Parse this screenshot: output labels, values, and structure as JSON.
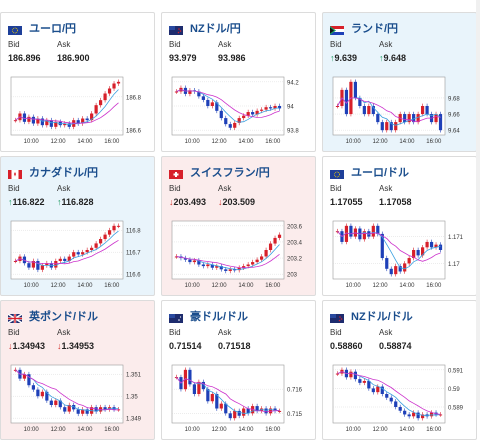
{
  "cards": [
    {
      "id": "eurjpy",
      "title": "ユーロ/円",
      "bid_label": "Bid",
      "ask_label": "Ask",
      "bid": "186.896",
      "ask": "186.900",
      "dir": "neutral",
      "arrow": "",
      "flag": "eu",
      "ticks": [
        "186.8",
        "186.6"
      ],
      "xticks": [
        "10:00",
        "12:00",
        "14:00",
        "16:00"
      ],
      "series": [
        186.66,
        186.7,
        186.65,
        186.68,
        186.64,
        186.67,
        186.63,
        186.66,
        186.62,
        186.65,
        186.63,
        186.64,
        186.62,
        186.66,
        186.64,
        186.67,
        186.66,
        186.7,
        186.75,
        186.78,
        186.82,
        186.85,
        186.88,
        186.89
      ]
    },
    {
      "id": "nzdjpy",
      "title": "NZドル/円",
      "bid_label": "Bid",
      "ask_label": "Ask",
      "bid": "93.979",
      "ask": "93.986",
      "dir": "neutral",
      "arrow": "",
      "flag": "nz",
      "ticks": [
        "94.2",
        "94",
        "93.8"
      ],
      "xticks": [
        "10:00",
        "12:00",
        "14:00",
        "16:00"
      ],
      "series": [
        94.12,
        94.15,
        94.1,
        94.13,
        94.12,
        94.08,
        94.05,
        94.0,
        94.03,
        93.96,
        93.9,
        93.85,
        93.82,
        93.86,
        93.9,
        93.92,
        93.95,
        93.93,
        93.96,
        93.97,
        93.99,
        93.98,
        94.0,
        93.98
      ]
    },
    {
      "id": "zarjpy",
      "title": "ランド/円",
      "bid_label": "Bid",
      "ask_label": "Ask",
      "bid": "9.639",
      "ask": "9.648",
      "dir": "up",
      "arrow": "up",
      "flag": "za",
      "ticks": [
        "9.68",
        "9.66",
        "9.64"
      ],
      "xticks": [
        "10:00",
        "12:00",
        "14:00",
        "16:00"
      ],
      "series": [
        9.67,
        9.69,
        9.66,
        9.7,
        9.68,
        9.67,
        9.66,
        9.67,
        9.66,
        9.65,
        9.64,
        9.65,
        9.64,
        9.65,
        9.66,
        9.65,
        9.66,
        9.65,
        9.66,
        9.67,
        9.66,
        9.65,
        9.66,
        9.64
      ]
    },
    {
      "id": "cadjpy",
      "title": "カナダドル/円",
      "bid_label": "Bid",
      "ask_label": "Ask",
      "bid": "116.822",
      "ask": "116.828",
      "dir": "up",
      "arrow": "up",
      "flag": "ca",
      "ticks": [
        "116.8",
        "116.7",
        "116.6"
      ],
      "xticks": [
        "10:00",
        "12:00",
        "14:00",
        "16:00"
      ],
      "series": [
        116.66,
        116.68,
        116.65,
        116.63,
        116.66,
        116.62,
        116.64,
        116.65,
        116.63,
        116.66,
        116.67,
        116.66,
        116.68,
        116.7,
        116.69,
        116.7,
        116.71,
        116.72,
        116.74,
        116.76,
        116.78,
        116.8,
        116.82,
        116.82
      ]
    },
    {
      "id": "chfjpy",
      "title": "スイスフラン/円",
      "bid_label": "Bid",
      "ask_label": "Ask",
      "bid": "203.493",
      "ask": "203.509",
      "dir": "down",
      "arrow": "down",
      "flag": "ch",
      "ticks": [
        "203.6",
        "203.4",
        "203.2",
        "203"
      ],
      "xticks": [
        "10:00",
        "12:00",
        "14:00",
        "16:00"
      ],
      "series": [
        203.22,
        203.2,
        203.18,
        203.15,
        203.17,
        203.12,
        203.1,
        203.12,
        203.08,
        203.1,
        203.06,
        203.04,
        203.06,
        203.05,
        203.08,
        203.1,
        203.12,
        203.15,
        203.18,
        203.22,
        203.3,
        203.38,
        203.45,
        203.49
      ]
    },
    {
      "id": "eurusd",
      "title": "ユーロ/ドル",
      "bid_label": "Bid",
      "ask_label": "Ask",
      "bid": "1.17055",
      "ask": "1.17058",
      "dir": "neutral",
      "arrow": "",
      "flag": "eu",
      "ticks": [
        "1.171",
        "1.17"
      ],
      "xticks": [
        "10:00",
        "12:00",
        "14:00",
        "16:00"
      ],
      "series": [
        1.1712,
        1.1708,
        1.1714,
        1.171,
        1.1713,
        1.1709,
        1.1712,
        1.171,
        1.1714,
        1.1711,
        1.1702,
        1.1698,
        1.1696,
        1.1699,
        1.1697,
        1.17,
        1.1702,
        1.1705,
        1.1703,
        1.1706,
        1.1708,
        1.1706,
        1.1707,
        1.1705
      ]
    },
    {
      "id": "gbpusd",
      "title": "英ポンド/ドル",
      "bid_label": "Bid",
      "ask_label": "Ask",
      "bid": "1.34943",
      "ask": "1.34953",
      "dir": "down",
      "arrow": "down",
      "flag": "gb",
      "ticks": [
        "1.351",
        "1.35",
        "1.349"
      ],
      "xticks": [
        "10:00",
        "12:00",
        "14:00",
        "16:00"
      ],
      "series": [
        1.3512,
        1.3508,
        1.351,
        1.3505,
        1.3503,
        1.35,
        1.3502,
        1.3498,
        1.3496,
        1.3498,
        1.3495,
        1.3493,
        1.3496,
        1.3494,
        1.3492,
        1.3494,
        1.3492,
        1.3495,
        1.3493,
        1.3495,
        1.3494,
        1.3495,
        1.3494,
        1.3494
      ]
    },
    {
      "id": "audusd",
      "title": "豪ドル/ドル",
      "bid_label": "Bid",
      "ask_label": "Ask",
      "bid": "0.71514",
      "ask": "0.71518",
      "dir": "neutral",
      "arrow": "",
      "flag": "au",
      "ticks": [
        "0.716",
        "0.715"
      ],
      "xticks": [
        "10:00",
        "12:00",
        "14:00",
        "16:00"
      ],
      "series": [
        0.7165,
        0.716,
        0.7168,
        0.7162,
        0.7158,
        0.7163,
        0.716,
        0.7155,
        0.7158,
        0.7152,
        0.7154,
        0.715,
        0.7148,
        0.7151,
        0.7149,
        0.7152,
        0.715,
        0.7153,
        0.7151,
        0.7152,
        0.715,
        0.7152,
        0.7151,
        0.7151
      ]
    },
    {
      "id": "nzdusd",
      "title": "NZドル/ドル",
      "bid_label": "Bid",
      "ask_label": "Ask",
      "bid": "0.58860",
      "ask": "0.58874",
      "dir": "neutral",
      "arrow": "",
      "flag": "nz",
      "ticks": [
        "0.591",
        "0.59",
        "0.589"
      ],
      "xticks": [
        "10:00",
        "12:00",
        "14:00",
        "16:00"
      ],
      "series": [
        0.5908,
        0.591,
        0.5906,
        0.5909,
        0.5905,
        0.5903,
        0.5904,
        0.59,
        0.5898,
        0.5901,
        0.5897,
        0.5895,
        0.5893,
        0.589,
        0.5888,
        0.5886,
        0.5885,
        0.5887,
        0.5884,
        0.5886,
        0.5885,
        0.5887,
        0.5886,
        0.5886
      ]
    }
  ],
  "colors": {
    "candle_up": "#d7202a",
    "candle_down": "#1e40b8",
    "ma_line": "#cc33cc",
    "ma_line2": "#3aa0e0",
    "chart_bg": "#ffffff",
    "grid": "#d0d0d0"
  }
}
